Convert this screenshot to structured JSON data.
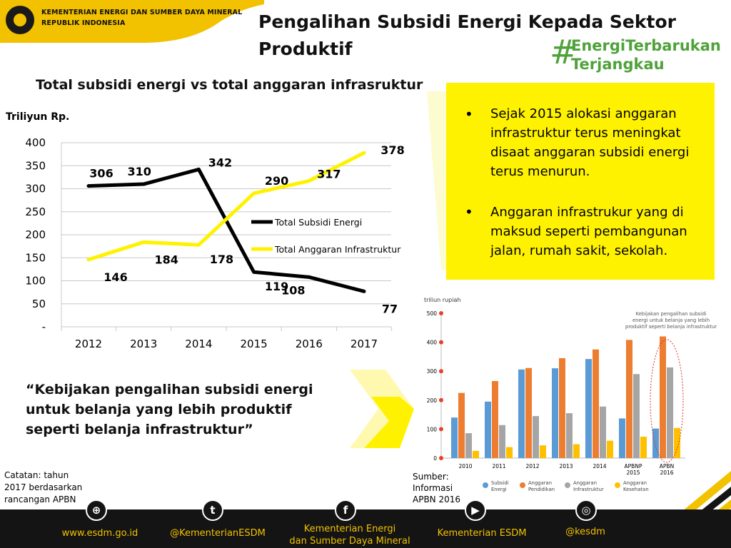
{
  "header": {
    "ministry_line1": "KEMENTERIAN ENERGI DAN SUMBER DAYA MINERAL",
    "ministry_line2": "REPUBLIK INDONESIA",
    "title_line1": "Pengalihan Subsidi Energi Kepada Sektor",
    "title_line2": "Produktif",
    "hashtag_mark": "#",
    "hashtag_line1": "EnergiTerbarukan",
    "hashtag_line2": "Terjangkau"
  },
  "chart_title": "Total subsidi energi vs total anggaran infrasruktur",
  "bullets": [
    "Sejak 2015 alokasi anggaran infrastruktur terus meningkat disaat anggaran subsidi energi terus menurun.",
    "Anggaran infrastrukur yang di maksud seperti pembangunan jalan, rumah sakit, sekolah."
  ],
  "quote": "“Kebijakan pengalihan subsidi energi untuk belanja yang lebih produktif seperti belanja infrastruktur”",
  "note": "Catatan: tahun 2017 berdasarkan rancangan APBN",
  "source": "Sumber: Informasi APBN 2016",
  "footer": {
    "website": "www.esdm.go.id",
    "twitter": "@KementerianESDM",
    "facebook_line1": "Kementerian Energi",
    "facebook_line2": "dan Sumber Daya Mineral",
    "youtube": "Kementerian ESDM",
    "instagram": "@kesdm"
  },
  "colors": {
    "brand_yellow": "#fff200",
    "subsidy_line": "#000000",
    "infra_line": "#fff200",
    "hashtag_green": "#4fa23a",
    "footer_bg": "#141414"
  },
  "chart_data": [
    {
      "type": "line",
      "title": "Total subsidi energi vs total anggaran infrasruktur",
      "ylabel": "Triliyun Rp.",
      "ylim": [
        0,
        400
      ],
      "yticks": [
        "-",
        "50",
        "100",
        "150",
        "200",
        "250",
        "300",
        "350",
        "400"
      ],
      "categories": [
        "2012",
        "2013",
        "2014",
        "2015",
        "2016",
        "2017"
      ],
      "grid": true,
      "legend": "inside-right",
      "series": [
        {
          "name": "Total Subsidi Energi",
          "color": "#000000",
          "values": [
            306,
            310,
            342,
            119,
            108,
            77
          ]
        },
        {
          "name": "Total Anggaran Infrastruktur",
          "color": "#fff200",
          "values": [
            146,
            184,
            178,
            290,
            317,
            378
          ]
        }
      ]
    },
    {
      "type": "bar",
      "ylabel": "triliun rupiah",
      "ylim": [
        0,
        500
      ],
      "yticks": [
        "0",
        "100",
        "200",
        "300",
        "400",
        "500"
      ],
      "categories": [
        "2010",
        "2011",
        "2012",
        "2013",
        "2014",
        "APBNP 2015",
        "APBN 2016"
      ],
      "annotation": "Kebijakan pengalihan subsidi energi untuk belanja yang lebih produktif seperti belanja infrastruktur",
      "legend": "bottom",
      "series": [
        {
          "name": "Subsidi Energi",
          "color": "#5b9bd5",
          "values": [
            140,
            195,
            306,
            310,
            342,
            137,
            102
          ]
        },
        {
          "name": "Anggaran Pendidikan",
          "color": "#ed7d31",
          "values": [
            225,
            266,
            311,
            345,
            375,
            408,
            420
          ]
        },
        {
          "name": "Anggaran Infrastruktur",
          "color": "#a5a5a5",
          "values": [
            86,
            114,
            145,
            155,
            178,
            290,
            313
          ]
        },
        {
          "name": "Anggaran Kesehatan",
          "color": "#ffc000",
          "values": [
            25,
            38,
            44,
            48,
            60,
            74,
            104
          ]
        }
      ]
    }
  ]
}
